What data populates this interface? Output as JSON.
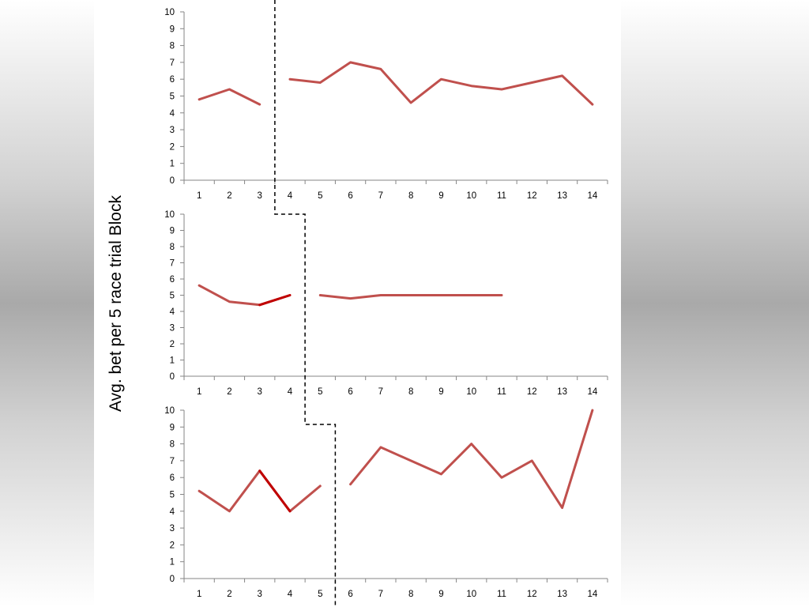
{
  "ylabel": "Avg. bet per 5 race trial Block",
  "colors": {
    "series": "#c0504d",
    "highlight": "#c00000",
    "axis": "#868686",
    "divider": "#000000"
  },
  "chart_data": [
    {
      "type": "line",
      "x": [
        1,
        2,
        3,
        4,
        5,
        6,
        7,
        8,
        9,
        10,
        11,
        12,
        13,
        14
      ],
      "ylim": [
        0,
        10
      ],
      "yticks": [
        0,
        1,
        2,
        3,
        4,
        5,
        6,
        7,
        8,
        9,
        10
      ],
      "values": [
        4.8,
        5.4,
        4.5,
        6.0,
        5.8,
        7.0,
        6.6,
        4.6,
        6.0,
        5.6,
        5.4,
        5.8,
        6.2,
        4.5
      ],
      "segments": [
        [
          1,
          3
        ],
        [
          4,
          14
        ]
      ],
      "highlight": [],
      "divider_after": 3
    },
    {
      "type": "line",
      "x": [
        1,
        2,
        3,
        4,
        5,
        6,
        7,
        8,
        9,
        10,
        11,
        12,
        13,
        14
      ],
      "ylim": [
        0,
        10
      ],
      "yticks": [
        0,
        1,
        2,
        3,
        4,
        5,
        6,
        7,
        8,
        9,
        10
      ],
      "values": [
        5.6,
        4.6,
        4.4,
        5.0,
        5.0,
        4.8,
        5.0,
        5.0,
        5.0,
        5.0,
        5.0,
        null,
        null,
        null
      ],
      "segments": [
        [
          1,
          4
        ],
        [
          5,
          11
        ]
      ],
      "highlight": [
        [
          3,
          4
        ]
      ],
      "divider_after": 4
    },
    {
      "type": "line",
      "x": [
        1,
        2,
        3,
        4,
        5,
        6,
        7,
        8,
        9,
        10,
        11,
        12,
        13,
        14
      ],
      "ylim": [
        0,
        10
      ],
      "yticks": [
        0,
        1,
        2,
        3,
        4,
        5,
        6,
        7,
        8,
        9,
        10
      ],
      "values": [
        5.2,
        4.0,
        6.4,
        4.0,
        5.5,
        5.6,
        7.8,
        7.0,
        6.2,
        8.0,
        6.0,
        7.0,
        4.2,
        10.0
      ],
      "segments": [
        [
          1,
          5
        ],
        [
          6,
          14
        ]
      ],
      "highlight": [
        [
          3,
          4
        ]
      ],
      "divider_after": 5
    }
  ]
}
